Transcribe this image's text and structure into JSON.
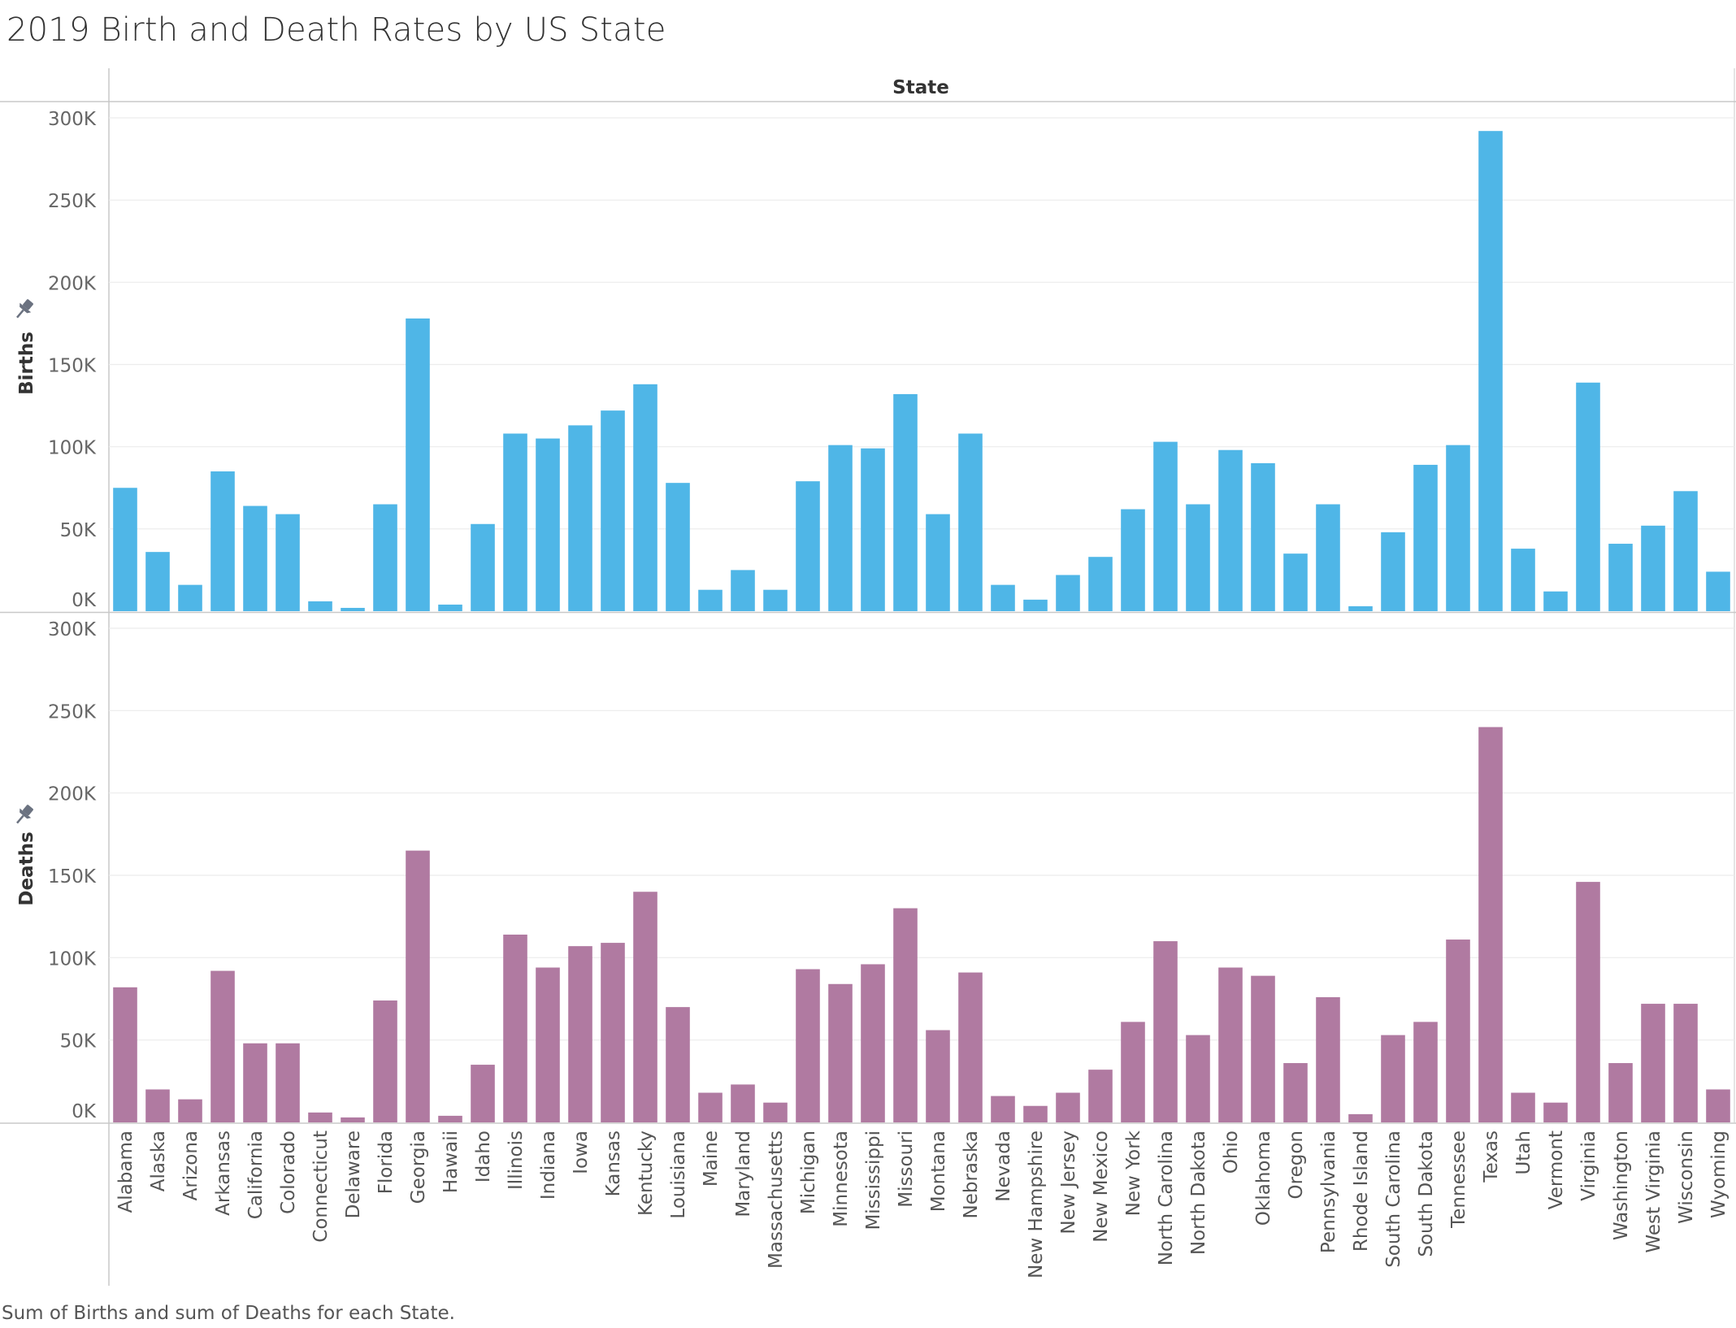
{
  "title": "2019 Birth and Death Rates by US State",
  "caption": "Sum of Births and sum of Deaths for each State.",
  "colors": {
    "births": "#4FB6E7",
    "deaths": "#B07AA1",
    "grid": "#ECECEC",
    "axis": "#C8C8C8",
    "tick_text": "#666666",
    "pin": "#6B7280"
  },
  "chart_data": {
    "type": "bar",
    "column_header": "State",
    "categories": [
      "Alabama",
      "Alaska",
      "Arizona",
      "Arkansas",
      "California",
      "Colorado",
      "Connecticut",
      "Delaware",
      "Florida",
      "Georgia",
      "Hawaii",
      "Idaho",
      "Illinois",
      "Indiana",
      "Iowa",
      "Kansas",
      "Kentucky",
      "Louisiana",
      "Maine",
      "Maryland",
      "Massachusetts",
      "Michigan",
      "Minnesota",
      "Mississippi",
      "Missouri",
      "Montana",
      "Nebraska",
      "Nevada",
      "New Hampshire",
      "New Jersey",
      "New Mexico",
      "New York",
      "North Carolina",
      "North Dakota",
      "Ohio",
      "Oklahoma",
      "Oregon",
      "Pennsylvania",
      "Rhode Island",
      "South Carolina",
      "South Dakota",
      "Tennessee",
      "Texas",
      "Utah",
      "Vermont",
      "Virginia",
      "Washington",
      "West Virginia",
      "Wisconsin",
      "Wyoming"
    ],
    "ylim": [
      0,
      300000
    ],
    "y_ticks": [
      0,
      50000,
      100000,
      150000,
      200000,
      250000,
      300000
    ],
    "y_tick_labels": [
      "0K",
      "50K",
      "100K",
      "150K",
      "200K",
      "250K",
      "300K"
    ],
    "grid": true,
    "legend": "none",
    "series": [
      {
        "name": "Births",
        "axis_label": "Births",
        "color": "#4FB6E7",
        "values": [
          75000,
          36000,
          16000,
          85000,
          64000,
          59000,
          6000,
          2000,
          65000,
          178000,
          4000,
          53000,
          108000,
          105000,
          113000,
          122000,
          138000,
          78000,
          13000,
          25000,
          13000,
          79000,
          101000,
          99000,
          132000,
          59000,
          108000,
          16000,
          7000,
          22000,
          33000,
          62000,
          103000,
          65000,
          98000,
          90000,
          35000,
          65000,
          3000,
          48000,
          89000,
          101000,
          292000,
          38000,
          12000,
          139000,
          41000,
          52000,
          73000,
          24000
        ]
      },
      {
        "name": "Deaths",
        "axis_label": "Deaths",
        "color": "#B07AA1",
        "values": [
          82000,
          20000,
          14000,
          92000,
          48000,
          48000,
          6000,
          3000,
          74000,
          165000,
          4000,
          35000,
          114000,
          94000,
          107000,
          109000,
          140000,
          70000,
          18000,
          23000,
          12000,
          93000,
          84000,
          96000,
          130000,
          56000,
          91000,
          16000,
          10000,
          18000,
          32000,
          61000,
          110000,
          53000,
          94000,
          89000,
          36000,
          76000,
          5000,
          53000,
          61000,
          111000,
          240000,
          18000,
          12000,
          146000,
          36000,
          72000,
          72000,
          20000
        ]
      }
    ]
  }
}
